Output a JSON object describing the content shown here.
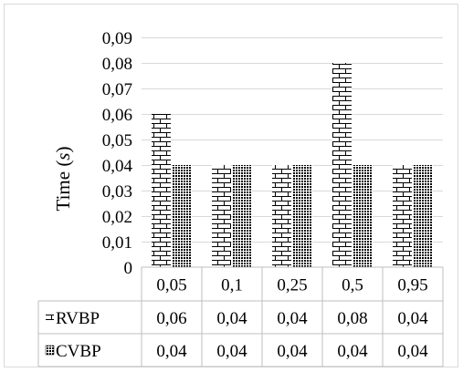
{
  "chart_data": {
    "type": "bar",
    "categories": [
      "0,05",
      "0,1",
      "0,25",
      "0,5",
      "0,95"
    ],
    "series": [
      {
        "name": "RVBP",
        "values": [
          0.06,
          0.04,
          0.04,
          0.08,
          0.04
        ],
        "value_labels": [
          "0,06",
          "0,04",
          "0,04",
          "0,08",
          "0,04"
        ],
        "pattern": "brick"
      },
      {
        "name": "CVBP",
        "values": [
          0.04,
          0.04,
          0.04,
          0.04,
          0.04
        ],
        "value_labels": [
          "0,04",
          "0,04",
          "0,04",
          "0,04",
          "0,04"
        ],
        "pattern": "dots"
      }
    ],
    "ylabel": "Time (s)",
    "ylabel_main": "Time (",
    "ylabel_unit": "s",
    "ylabel_close": ")",
    "ylim": [
      0,
      0.09
    ],
    "yticks": [
      0,
      0.01,
      0.02,
      0.03,
      0.04,
      0.05,
      0.06,
      0.07,
      0.08,
      0.09
    ],
    "ytick_labels": [
      "0",
      "0,01",
      "0,02",
      "0,03",
      "0,04",
      "0,05",
      "0,06",
      "0,07",
      "0,08",
      "0,09"
    ],
    "grid": true,
    "legend": "data-table",
    "colors": {
      "frame": "#d9d9d9",
      "grid": "#d9d9d9",
      "table_border": "#bfbfbf",
      "bar_fill": "#ffffff",
      "bar_ink": "#000000"
    }
  }
}
